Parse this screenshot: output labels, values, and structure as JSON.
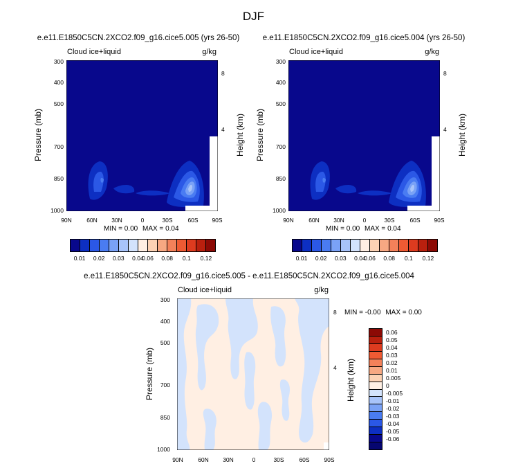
{
  "title": "DJF",
  "panels": [
    {
      "id": "p1",
      "title": "e.e11.E1850C5CN.2XCO2.f09_g16.cice5.005 (yrs 26-50)",
      "left_label": "Cloud ice+liquid",
      "right_label": "g/kg",
      "ylabel": "Pressure (mb)",
      "ylabel_right": "Height (km)",
      "stats": {
        "min_label": "MIN =",
        "min": "0.00",
        "max_label": "MAX =",
        "max": "0.04"
      }
    },
    {
      "id": "p2",
      "title": "e.e11.E1850C5CN.2XCO2.f09_g16.cice5.004 (yrs 26-50)",
      "left_label": "Cloud ice+liquid",
      "right_label": "g/kg",
      "ylabel": "Pressure (mb)",
      "ylabel_right": "Height (km)",
      "stats": {
        "min_label": "MIN =",
        "min": "0.00",
        "max_label": "MAX =",
        "max": "0.04"
      }
    },
    {
      "id": "p3",
      "title": "e.e11.E1850C5CN.2XCO2.f09_g16.cice5.005 - e.e11.E1850C5CN.2XCO2.f09_g16.cice5.004",
      "left_label": "Cloud ice+liquid",
      "right_label": "g/kg",
      "ylabel": "Pressure (mb)",
      "ylabel_right": "Height (km)",
      "stats": {
        "min_label": "MIN =",
        "min": "-0.00",
        "max_label": "MAX =",
        "max": "0.00"
      }
    }
  ],
  "axes": {
    "x_ticks": [
      "90N",
      "60N",
      "30N",
      "0",
      "30S",
      "60S",
      "90S"
    ],
    "y_ticks": [
      "300",
      "400",
      "500",
      "700",
      "850",
      "1000"
    ],
    "height_ticks": [
      "8",
      "4"
    ]
  },
  "colorbar_top": {
    "labels": [
      "0.01",
      "0.02",
      "0.03",
      "0.04",
      "0.06",
      "0.08",
      "0.1",
      "0.12"
    ],
    "colors": [
      "#08088c",
      "#0d2fc2",
      "#2b58e6",
      "#4a7cf2",
      "#7aa2f6",
      "#a8c4fa",
      "#d3e3fc",
      "#ffefe3",
      "#fcd2b4",
      "#f7a882",
      "#f3815a",
      "#ee5a33",
      "#dd3b1f",
      "#b9200e",
      "#8c0a05"
    ]
  },
  "colorbar_diff": {
    "labels": [
      "0.06",
      "0.05",
      "0.04",
      "0.03",
      "0.02",
      "0.01",
      "0.005",
      "0",
      "-0.005",
      "-0.01",
      "-0.02",
      "-0.03",
      "-0.04",
      "-0.05",
      "-0.06"
    ],
    "colors": [
      "#8c0a05",
      "#b9200e",
      "#dd3b1f",
      "#ee5a33",
      "#f3815a",
      "#f7a882",
      "#fcd2b4",
      "#ffefe3",
      "#d3e3fc",
      "#a8c4fa",
      "#7aa2f6",
      "#4a7cf2",
      "#2b58e6",
      "#0d2fc2",
      "#08088c",
      "#060670"
    ]
  },
  "chart_data": [
    {
      "type": "heatmap",
      "title": "e.e11.E1850C5CN.2XCO2.f09_g16.cice5.005 (yrs 26-50)",
      "variable": "Cloud ice+liquid",
      "units": "g/kg",
      "xlabel": "",
      "ylabel": "Pressure (mb)",
      "x_range": [
        "90N",
        "90S"
      ],
      "y_range": [
        300,
        1000
      ],
      "contour_levels": [
        0.01,
        0.02,
        0.03,
        0.04,
        0.06,
        0.08,
        0.1,
        0.12
      ],
      "min": 0.0,
      "max": 0.04
    },
    {
      "type": "heatmap",
      "title": "e.e11.E1850C5CN.2XCO2.f09_g16.cice5.004 (yrs 26-50)",
      "variable": "Cloud ice+liquid",
      "units": "g/kg",
      "xlabel": "",
      "ylabel": "Pressure (mb)",
      "x_range": [
        "90N",
        "90S"
      ],
      "y_range": [
        300,
        1000
      ],
      "contour_levels": [
        0.01,
        0.02,
        0.03,
        0.04,
        0.06,
        0.08,
        0.1,
        0.12
      ],
      "min": 0.0,
      "max": 0.04
    },
    {
      "type": "heatmap",
      "title": "e.e11.E1850C5CN.2XCO2.f09_g16.cice5.005 - e.e11.E1850C5CN.2XCO2.f09_g16.cice5.004",
      "variable": "Cloud ice+liquid",
      "units": "g/kg",
      "xlabel": "",
      "ylabel": "Pressure (mb)",
      "x_range": [
        "90N",
        "90S"
      ],
      "y_range": [
        300,
        1000
      ],
      "contour_levels": [
        -0.06,
        -0.05,
        -0.04,
        -0.03,
        -0.02,
        -0.01,
        -0.005,
        0,
        0.005,
        0.01,
        0.02,
        0.03,
        0.04,
        0.05,
        0.06
      ],
      "min": -0.0,
      "max": 0.0
    }
  ]
}
